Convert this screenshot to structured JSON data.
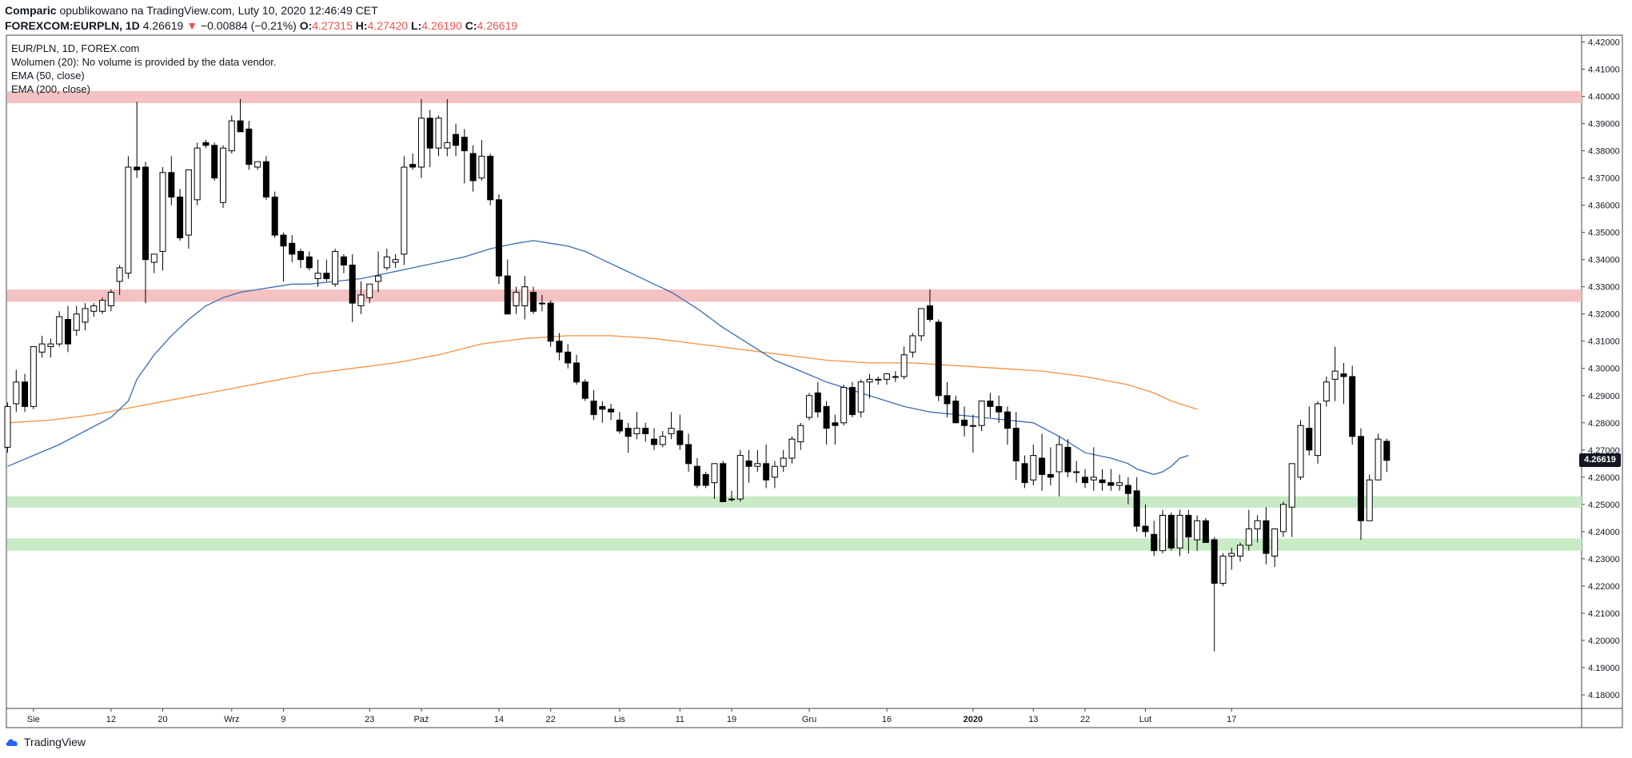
{
  "header": {
    "author": "Comparic",
    "published": "opublikowano na TradingView.com, Luty 10, 2020 12:46:49 CET",
    "symbol": "FOREXCOM:EURPLN, 1D",
    "last": "4.26619",
    "arrow": "▼",
    "change": "−0.00884 (−0.21%)",
    "o_label": "O:",
    "o_value": "4.27315",
    "h_label": "H:",
    "h_value": "4.27420",
    "l_label": "L:",
    "l_value": "4.26190",
    "c_label": "C:",
    "c_value": "4.26619"
  },
  "legend": {
    "line1": "EUR/PLN, 1D, FOREX.com",
    "line2": "Wolumen (20): No volume is provided by the data vendor.",
    "line3": "EMA (50, close)",
    "line4": "EMA (200, close)"
  },
  "price_tag": "4.26619",
  "brand": "TradingView",
  "colors": {
    "up_body": "#ffffff",
    "down_body": "#000000",
    "wick": "#000000",
    "ema50": "#3b6bb5",
    "ema200": "#f7913d",
    "resistance_zone": "#f4c2c2",
    "support_zone": "#c8ebc6"
  },
  "chart_data": {
    "type": "candlestick",
    "title": "EUR/PLN, 1D, FOREX.com",
    "ylim": [
      4.175,
      4.4225
    ],
    "y_ticks": [
      "4.42000",
      "4.41000",
      "4.40000",
      "4.39000",
      "4.38000",
      "4.37000",
      "4.36000",
      "4.35000",
      "4.34000",
      "4.33000",
      "4.32000",
      "4.31000",
      "4.30000",
      "4.29000",
      "4.28000",
      "4.27000",
      "4.26000",
      "4.25000",
      "4.24000",
      "4.23000",
      "4.22000",
      "4.21000",
      "4.20000",
      "4.19000",
      "4.18000"
    ],
    "x_ticks": [
      {
        "i": 3,
        "label": "Sie"
      },
      {
        "i": 12,
        "label": "12"
      },
      {
        "i": 18,
        "label": "20"
      },
      {
        "i": 26,
        "label": "Wrz"
      },
      {
        "i": 32,
        "label": "9"
      },
      {
        "i": 42,
        "label": "23"
      },
      {
        "i": 48,
        "label": "Paź"
      },
      {
        "i": 57,
        "label": "14"
      },
      {
        "i": 63,
        "label": "22"
      },
      {
        "i": 71,
        "label": "Lis"
      },
      {
        "i": 78,
        "label": "11"
      },
      {
        "i": 84,
        "label": "19"
      },
      {
        "i": 93,
        "label": "Gru"
      },
      {
        "i": 102,
        "label": "16"
      },
      {
        "i": 112,
        "label": "2020"
      },
      {
        "i": 119,
        "label": "13"
      },
      {
        "i": 125,
        "label": "22"
      },
      {
        "i": 132,
        "label": "Lut"
      },
      {
        "i": 142,
        "label": "17"
      }
    ],
    "zones": [
      {
        "type": "resistance",
        "from": 4.3975,
        "to": 4.402
      },
      {
        "type": "resistance",
        "from": 4.3245,
        "to": 4.329
      },
      {
        "type": "support",
        "from": 4.2488,
        "to": 4.253
      },
      {
        "type": "support",
        "from": 4.233,
        "to": 4.2375
      }
    ],
    "candles": [
      [
        4.271,
        4.2875,
        4.269,
        4.286
      ],
      [
        4.287,
        4.2995,
        4.284,
        4.295
      ],
      [
        4.295,
        4.298,
        4.284,
        4.286
      ],
      [
        4.286,
        4.307,
        4.285,
        4.308
      ],
      [
        4.306,
        4.312,
        4.304,
        4.309
      ],
      [
        4.308,
        4.311,
        4.304,
        4.309
      ],
      [
        4.309,
        4.321,
        4.308,
        4.319
      ],
      [
        4.318,
        4.323,
        4.306,
        4.309
      ],
      [
        4.314,
        4.323,
        4.312,
        4.32
      ],
      [
        4.317,
        4.324,
        4.314,
        4.322
      ],
      [
        4.321,
        4.324,
        4.319,
        4.323
      ],
      [
        4.321,
        4.326,
        4.32,
        4.325
      ],
      [
        4.323,
        4.329,
        4.321,
        4.328
      ],
      [
        4.332,
        4.338,
        4.327,
        4.337
      ],
      [
        4.335,
        4.378,
        4.333,
        4.374
      ],
      [
        4.374,
        4.398,
        4.37,
        4.373
      ],
      [
        4.374,
        4.376,
        4.324,
        4.34
      ],
      [
        4.339,
        4.342,
        4.335,
        4.342
      ],
      [
        4.343,
        4.374,
        4.336,
        4.372
      ],
      [
        4.372,
        4.378,
        4.36,
        4.363
      ],
      [
        4.363,
        4.366,
        4.347,
        4.348
      ],
      [
        4.349,
        4.371,
        4.344,
        4.373
      ],
      [
        4.362,
        4.383,
        4.36,
        4.381
      ],
      [
        4.383,
        4.384,
        4.381,
        4.382
      ],
      [
        4.382,
        4.383,
        4.369,
        4.37
      ],
      [
        4.361,
        4.382,
        4.359,
        4.381
      ],
      [
        4.38,
        4.393,
        4.379,
        4.391
      ],
      [
        4.391,
        4.399,
        4.389,
        4.387
      ],
      [
        4.388,
        4.391,
        4.373,
        4.375
      ],
      [
        4.374,
        4.376,
        4.373,
        4.376
      ],
      [
        4.376,
        4.378,
        4.362,
        4.363
      ],
      [
        4.363,
        4.365,
        4.348,
        4.349
      ],
      [
        4.349,
        4.35,
        4.332,
        4.345
      ],
      [
        4.346,
        4.349,
        4.339,
        4.342
      ],
      [
        4.343,
        4.344,
        4.337,
        4.34
      ],
      [
        4.341,
        4.343,
        4.336,
        4.337
      ],
      [
        4.333,
        4.34,
        4.33,
        4.335
      ],
      [
        4.335,
        4.34,
        4.332,
        4.333
      ],
      [
        4.331,
        4.344,
        4.33,
        4.343
      ],
      [
        4.341,
        4.342,
        4.335,
        4.338
      ],
      [
        4.338,
        4.342,
        4.317,
        4.324
      ],
      [
        4.323,
        4.332,
        4.32,
        4.327
      ],
      [
        4.326,
        4.331,
        4.324,
        4.331
      ],
      [
        4.332,
        4.343,
        4.328,
        4.334
      ],
      [
        4.337,
        4.344,
        4.336,
        4.341
      ],
      [
        4.339,
        4.342,
        4.337,
        4.34
      ],
      [
        4.342,
        4.378,
        4.338,
        4.374
      ],
      [
        4.375,
        4.379,
        4.373,
        4.374
      ],
      [
        4.374,
        4.399,
        4.37,
        4.392
      ],
      [
        4.392,
        4.395,
        4.374,
        4.381
      ],
      [
        4.381,
        4.393,
        4.378,
        4.392
      ],
      [
        4.381,
        4.399,
        4.378,
        4.383
      ],
      [
        4.386,
        4.39,
        4.378,
        4.382
      ],
      [
        4.385,
        4.388,
        4.368,
        4.38
      ],
      [
        4.379,
        4.382,
        4.365,
        4.369
      ],
      [
        4.37,
        4.384,
        4.369,
        4.378
      ],
      [
        4.378,
        4.379,
        4.36,
        4.362
      ],
      [
        4.362,
        4.364,
        4.331,
        4.334
      ],
      [
        4.334,
        4.34,
        4.32,
        4.32
      ],
      [
        4.323,
        4.33,
        4.32,
        4.328
      ],
      [
        4.323,
        4.334,
        4.318,
        4.33
      ],
      [
        4.328,
        4.33,
        4.32,
        4.321
      ],
      [
        4.324,
        4.327,
        4.321,
        4.324
      ],
      [
        4.324,
        4.325,
        4.308,
        4.31
      ],
      [
        4.31,
        4.313,
        4.303,
        4.306
      ],
      [
        4.306,
        4.309,
        4.3,
        4.302
      ],
      [
        4.302,
        4.305,
        4.294,
        4.295
      ],
      [
        4.295,
        4.296,
        4.288,
        4.289
      ],
      [
        4.288,
        4.292,
        4.281,
        4.283
      ],
      [
        4.286,
        4.288,
        4.28,
        4.285
      ],
      [
        4.285,
        4.287,
        4.281,
        4.284
      ],
      [
        4.281,
        4.284,
        4.276,
        4.277
      ],
      [
        4.278,
        4.28,
        4.269,
        4.275
      ],
      [
        4.276,
        4.284,
        4.274,
        4.278
      ],
      [
        4.278,
        4.28,
        4.273,
        4.276
      ],
      [
        4.274,
        4.278,
        4.27,
        4.272
      ],
      [
        4.272,
        4.277,
        4.271,
        4.275
      ],
      [
        4.276,
        4.284,
        4.274,
        4.278
      ],
      [
        4.277,
        4.283,
        4.27,
        4.272
      ],
      [
        4.272,
        4.276,
        4.262,
        4.265
      ],
      [
        4.264,
        4.267,
        4.256,
        4.257
      ],
      [
        4.261,
        4.262,
        4.256,
        4.257
      ],
      [
        4.258,
        4.263,
        4.252,
        4.265
      ],
      [
        4.265,
        4.266,
        4.251,
        4.251
      ],
      [
        4.252,
        4.255,
        4.251,
        4.252
      ],
      [
        4.252,
        4.27,
        4.251,
        4.268
      ],
      [
        4.266,
        4.27,
        4.258,
        4.264
      ],
      [
        4.264,
        4.27,
        4.262,
        4.265
      ],
      [
        4.265,
        4.272,
        4.256,
        4.259
      ],
      [
        4.26,
        4.266,
        4.256,
        4.264
      ],
      [
        4.264,
        4.27,
        4.262,
        4.267
      ],
      [
        4.267,
        4.275,
        4.265,
        4.274
      ],
      [
        4.273,
        4.28,
        4.27,
        4.279
      ],
      [
        4.282,
        4.291,
        4.281,
        4.29
      ],
      [
        4.291,
        4.295,
        4.282,
        4.284
      ],
      [
        4.286,
        4.288,
        4.272,
        4.278
      ],
      [
        4.28,
        4.283,
        4.272,
        4.279
      ],
      [
        4.28,
        4.294,
        4.279,
        4.293
      ],
      [
        4.293,
        4.295,
        4.282,
        4.283
      ],
      [
        4.284,
        4.296,
        4.282,
        4.295
      ],
      [
        4.295,
        4.298,
        4.289,
        4.296
      ],
      [
        4.296,
        4.297,
        4.294,
        4.296
      ],
      [
        4.296,
        4.298,
        4.294,
        4.298
      ],
      [
        4.297,
        4.299,
        4.295,
        4.297
      ],
      [
        4.297,
        4.308,
        4.296,
        4.305
      ],
      [
        4.306,
        4.313,
        4.304,
        4.312
      ],
      [
        4.312,
        4.322,
        4.31,
        4.322
      ],
      [
        4.323,
        4.329,
        4.317,
        4.318
      ],
      [
        4.317,
        4.318,
        4.288,
        4.29
      ],
      [
        4.29,
        4.295,
        4.282,
        4.287
      ],
      [
        4.288,
        4.29,
        4.28,
        4.28
      ],
      [
        4.281,
        4.286,
        4.275,
        4.279
      ],
      [
        4.279,
        4.283,
        4.269,
        4.279
      ],
      [
        4.279,
        4.288,
        4.277,
        4.288
      ],
      [
        4.288,
        4.291,
        4.282,
        4.286
      ],
      [
        4.286,
        4.29,
        4.28,
        4.284
      ],
      [
        4.284,
        4.286,
        4.272,
        4.278
      ],
      [
        4.278,
        4.284,
        4.259,
        4.266
      ],
      [
        4.265,
        4.268,
        4.256,
        4.258
      ],
      [
        4.259,
        4.272,
        4.257,
        4.268
      ],
      [
        4.267,
        4.276,
        4.255,
        4.261
      ],
      [
        4.261,
        4.271,
        4.257,
        4.26
      ],
      [
        4.262,
        4.275,
        4.253,
        4.272
      ],
      [
        4.271,
        4.274,
        4.26,
        4.262
      ],
      [
        4.262,
        4.266,
        4.258,
        4.262
      ],
      [
        4.26,
        4.263,
        4.256,
        4.258
      ],
      [
        4.259,
        4.271,
        4.255,
        4.26
      ],
      [
        4.259,
        4.263,
        4.255,
        4.258
      ],
      [
        4.258,
        4.263,
        4.255,
        4.257
      ],
      [
        4.257,
        4.261,
        4.255,
        4.258
      ],
      [
        4.257,
        4.26,
        4.25,
        4.254
      ],
      [
        4.255,
        4.26,
        4.24,
        4.242
      ],
      [
        4.242,
        4.25,
        4.238,
        4.24
      ],
      [
        4.239,
        4.244,
        4.231,
        4.233
      ],
      [
        4.233,
        4.248,
        4.232,
        4.246
      ],
      [
        4.246,
        4.247,
        4.233,
        4.234
      ],
      [
        4.234,
        4.248,
        4.231,
        4.246
      ],
      [
        4.246,
        4.248,
        4.232,
        4.238
      ],
      [
        4.237,
        4.246,
        4.233,
        4.244
      ],
      [
        4.244,
        4.245,
        4.236,
        4.236
      ],
      [
        4.237,
        4.238,
        4.196,
        4.221
      ],
      [
        4.221,
        4.232,
        4.22,
        4.231
      ],
      [
        4.231,
        4.234,
        4.226,
        4.232
      ],
      [
        4.231,
        4.236,
        4.229,
        4.235
      ],
      [
        4.235,
        4.248,
        4.233,
        4.241
      ],
      [
        4.241,
        4.246,
        4.236,
        4.244
      ],
      [
        4.244,
        4.249,
        4.228,
        4.232
      ],
      [
        4.231,
        4.24,
        4.227,
        4.241
      ],
      [
        4.24,
        4.251,
        4.238,
        4.25
      ],
      [
        4.249,
        4.264,
        4.238,
        4.265
      ],
      [
        4.26,
        4.281,
        4.259,
        4.279
      ],
      [
        4.278,
        4.286,
        4.268,
        4.27
      ],
      [
        4.268,
        4.288,
        4.265,
        4.287
      ],
      [
        4.288,
        4.297,
        4.286,
        4.295
      ],
      [
        4.296,
        4.308,
        4.288,
        4.299
      ],
      [
        4.298,
        4.302,
        4.287,
        4.297
      ],
      [
        4.297,
        4.301,
        4.272,
        4.275
      ],
      [
        4.275,
        4.278,
        4.237,
        4.244
      ],
      [
        4.244,
        4.261,
        4.244,
        4.259
      ],
      [
        4.259,
        4.276,
        4.259,
        4.274
      ],
      [
        4.2732,
        4.2742,
        4.2619,
        4.2662
      ]
    ],
    "ema50": [
      4.264,
      4.268,
      4.272,
      4.277,
      4.282,
      4.288,
      4.296,
      4.305,
      4.312,
      4.318,
      4.323,
      4.326,
      4.328,
      4.329,
      4.33,
      4.331,
      4.331,
      4.332,
      4.333,
      4.335,
      4.337,
      4.339,
      4.341,
      4.344,
      4.346,
      4.347,
      4.346,
      4.345,
      4.343,
      4.34,
      4.337,
      4.334,
      4.331,
      4.328,
      4.322,
      4.315,
      4.309,
      4.303,
      4.299,
      4.295,
      4.292,
      4.289,
      4.286,
      4.284,
      4.283,
      4.282,
      4.281,
      4.28,
      4.275,
      4.269,
      4.267,
      4.265,
      4.263,
      4.261,
      4.262,
      4.264,
      4.267,
      4.268
    ],
    "ema50_i": [
      0,
      3,
      6,
      9,
      12,
      14,
      15,
      17,
      19,
      21,
      23,
      25,
      27,
      29,
      31,
      33,
      35,
      38,
      41,
      44,
      47,
      50,
      53,
      56,
      59,
      61,
      63,
      65,
      67,
      69,
      71,
      73,
      75,
      77,
      80,
      83,
      86,
      89,
      92,
      95,
      98,
      101,
      104,
      107,
      110,
      113,
      116,
      119,
      122,
      125,
      128,
      130,
      131,
      133,
      134,
      135,
      136,
      137
    ],
    "ema200": [
      4.28,
      4.281,
      4.283,
      4.286,
      4.289,
      4.292,
      4.295,
      4.298,
      4.3,
      4.302,
      4.305,
      4.309,
      4.311,
      4.312,
      4.312,
      4.311,
      4.309,
      4.307,
      4.305,
      4.303,
      4.302,
      4.302,
      4.301,
      4.3,
      4.299,
      4.297,
      4.294,
      4.291,
      4.288,
      4.287,
      4.286,
      4.285
    ],
    "ema200_i": [
      0,
      5,
      10,
      15,
      20,
      25,
      30,
      35,
      40,
      45,
      50,
      55,
      60,
      65,
      70,
      75,
      80,
      85,
      90,
      95,
      100,
      105,
      110,
      115,
      120,
      125,
      130,
      133,
      135,
      136,
      137,
      138
    ]
  }
}
